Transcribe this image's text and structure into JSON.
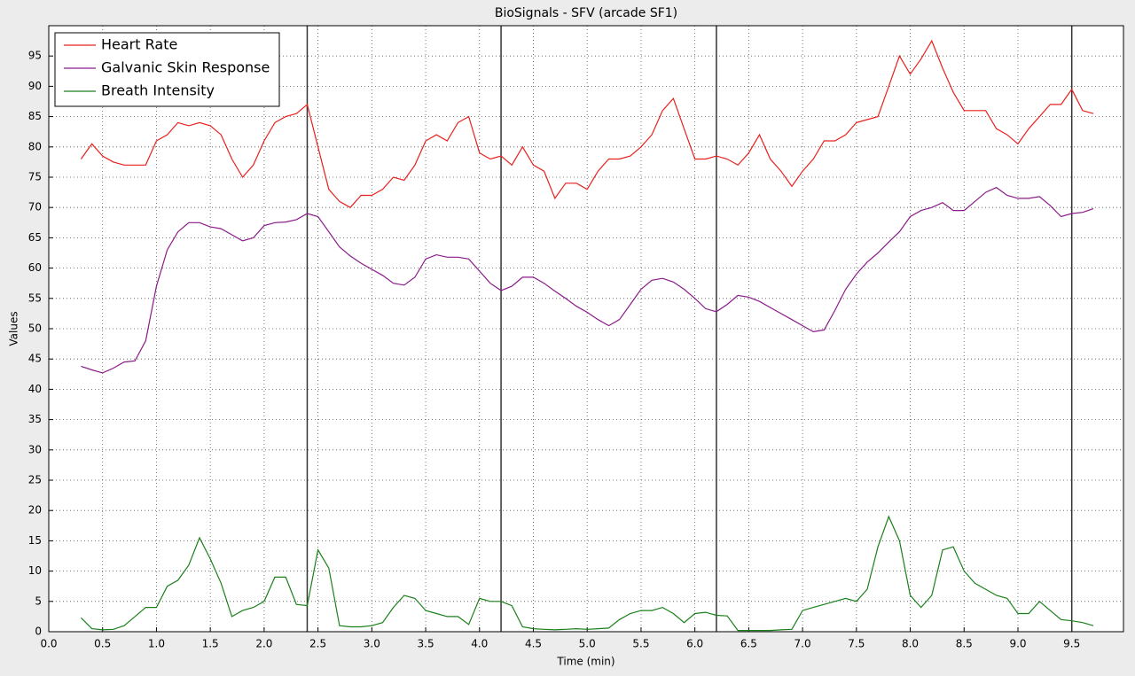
{
  "chart_data": {
    "type": "line",
    "title": "BioSignals - SFV (arcade SF1)",
    "x_label": "Time (min)",
    "y_label": "Values",
    "x": [
      0.3,
      0.4,
      0.5,
      0.6,
      0.7,
      0.8,
      0.9,
      1.0,
      1.1,
      1.2,
      1.3,
      1.4,
      1.5,
      1.6,
      1.7,
      1.8,
      1.9,
      2.0,
      2.1,
      2.2,
      2.3,
      2.4,
      2.5,
      2.6,
      2.7,
      2.8,
      2.9,
      3.0,
      3.1,
      3.2,
      3.3,
      3.4,
      3.5,
      3.6,
      3.7,
      3.8,
      3.9,
      4.0,
      4.1,
      4.2,
      4.3,
      4.4,
      4.5,
      4.6,
      4.7,
      4.8,
      4.9,
      5.0,
      5.1,
      5.2,
      5.3,
      5.4,
      5.5,
      5.6,
      5.7,
      5.8,
      5.9,
      6.0,
      6.1,
      6.2,
      6.3,
      6.4,
      6.5,
      6.6,
      6.7,
      6.8,
      6.9,
      7.0,
      7.1,
      7.2,
      7.3,
      7.4,
      7.5,
      7.6,
      7.7,
      7.8,
      7.9,
      8.0,
      8.1,
      8.2,
      8.3,
      8.4,
      8.5,
      8.6,
      8.7,
      8.8,
      8.9,
      9.0,
      9.1,
      9.2,
      9.3,
      9.4,
      9.5,
      9.6,
      9.7
    ],
    "series": [
      {
        "name": "Heart Rate",
        "color": "#e8201c",
        "values": [
          78,
          80.5,
          78.5,
          77.5,
          77,
          77,
          77,
          81,
          82,
          84,
          83.5,
          84,
          83.5,
          82,
          78,
          75,
          77,
          81,
          84,
          85,
          85.5,
          87,
          80,
          73,
          71,
          70,
          72,
          72,
          73,
          75,
          74.5,
          77,
          81,
          82,
          81,
          84,
          85,
          79,
          78,
          78.5,
          77,
          80,
          77,
          76,
          71.5,
          74,
          74,
          73,
          76,
          78,
          78,
          78.5,
          80,
          82,
          86,
          88,
          83,
          78,
          78,
          78.5,
          78,
          77,
          79,
          82,
          78,
          76,
          73.5,
          76,
          78,
          81,
          81,
          82,
          84,
          84.5,
          85,
          90,
          95,
          92,
          94.5,
          97.5,
          93,
          89,
          86,
          86,
          86,
          83,
          82,
          80.5,
          83,
          85,
          87,
          87,
          89.5,
          86,
          85.5
        ]
      },
      {
        "name": "Galvanic Skin Response",
        "color": "#8b1a8b",
        "values": [
          43.8,
          43.2,
          42.7,
          43.5,
          44.5,
          44.7,
          48,
          57,
          63,
          66,
          67.5,
          67.5,
          66.8,
          66.5,
          65.5,
          64.5,
          65,
          67,
          67.5,
          67.6,
          68,
          69,
          68.5,
          66,
          63.5,
          62,
          60.8,
          59.8,
          58.8,
          57.5,
          57.2,
          58.5,
          61.5,
          62.2,
          61.8,
          61.8,
          61.5,
          59.5,
          57.5,
          56.3,
          57,
          58.5,
          58.5,
          57.5,
          56.2,
          55,
          53.7,
          52.7,
          51.5,
          50.5,
          51.5,
          54,
          56.5,
          58,
          58.3,
          57.7,
          56.5,
          55,
          53.3,
          52.8,
          54,
          55.5,
          55.2,
          54.5,
          53.5,
          52.5,
          51.5,
          50.5,
          49.5,
          49.8,
          53,
          56.5,
          59,
          61,
          62.5,
          64.3,
          66,
          68.5,
          69.5,
          70,
          70.8,
          69.5,
          69.5,
          71,
          72.5,
          73.3,
          72,
          71.5,
          71.5,
          71.8,
          70.3,
          68.5,
          69,
          69.2,
          69.8
        ]
      },
      {
        "name": "Breath Intensity",
        "color": "#1a801a",
        "values": [
          2.3,
          0.5,
          0.3,
          0.4,
          1,
          2.5,
          4,
          4,
          7.5,
          8.5,
          11,
          15.5,
          12,
          8,
          2.5,
          3.5,
          4,
          5,
          9,
          9,
          4.5,
          4.3,
          13.5,
          10.5,
          1,
          0.8,
          0.8,
          1,
          1.5,
          4,
          6,
          5.5,
          3.5,
          3,
          2.5,
          2.5,
          1.2,
          5.5,
          5,
          5,
          4.3,
          0.8,
          0.5,
          0.4,
          0.3,
          0.4,
          0.5,
          0.4,
          0.5,
          0.6,
          2,
          3,
          3.5,
          3.5,
          4,
          3,
          1.5,
          3,
          3.2,
          2.7,
          2.6,
          0.2,
          0.2,
          0.2,
          0.2,
          0.3,
          0.4,
          3.5,
          4,
          4.5,
          5,
          5.5,
          5,
          7,
          14,
          19,
          15,
          6,
          4,
          6,
          13.5,
          14,
          10,
          8,
          7,
          6,
          5.5,
          3,
          3,
          5,
          3.5,
          2,
          1.8,
          1.5,
          1
        ]
      }
    ],
    "markers": [
      2.4,
      4.2,
      6.2,
      9.5
    ],
    "marker_color": "#333333",
    "xlim": [
      0,
      9.98
    ],
    "ylim": [
      0,
      100
    ],
    "xticks": [
      {
        "value": 0,
        "label": "0.0"
      },
      0.5,
      {
        "value": 1,
        "label": "1.0"
      },
      1.5,
      {
        "value": 2,
        "label": "2.0"
      },
      2.5,
      {
        "value": 3,
        "label": "3.0"
      },
      3.5,
      {
        "value": 4,
        "label": "4.0"
      },
      4.5,
      {
        "value": 5,
        "label": "5.0"
      },
      5.5,
      {
        "value": 6,
        "label": "6.0"
      },
      6.5,
      {
        "value": 7,
        "label": "7.0"
      },
      7.5,
      {
        "value": 8,
        "label": "8.0"
      },
      8.5,
      {
        "value": 9,
        "label": "9.0"
      },
      9.5
    ],
    "yticks": [
      0,
      5,
      10,
      15,
      20,
      25,
      30,
      35,
      40,
      45,
      50,
      55,
      60,
      65,
      70,
      75,
      80,
      85,
      90,
      95
    ],
    "grid": true,
    "legend": "upper-left"
  }
}
